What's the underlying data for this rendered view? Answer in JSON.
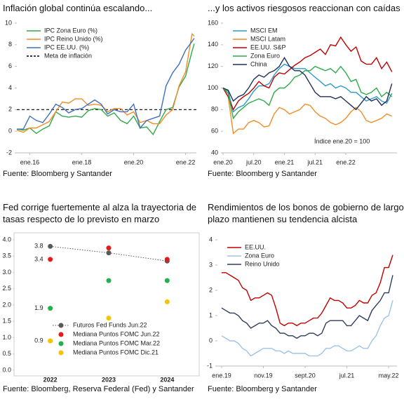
{
  "chart_data": [
    {
      "type": "line",
      "title": "Inflación global continúa escalando...",
      "source": "Fuente: Bloomberg y Santander",
      "x": [
        "2015-07",
        "2015-10",
        "2016-01",
        "2016-04",
        "2016-07",
        "2016-10",
        "2017-01",
        "2017-04",
        "2017-07",
        "2017-10",
        "2018-01",
        "2018-04",
        "2018-07",
        "2018-10",
        "2019-01",
        "2019-04",
        "2019-07",
        "2019-10",
        "2020-01",
        "2020-04",
        "2020-07",
        "2020-10",
        "2021-01",
        "2021-04",
        "2021-07",
        "2021-10",
        "2022-01",
        "2022-04",
        "2022-05"
      ],
      "series": [
        {
          "name": "IPC Zona Euro (%)",
          "color": "#2eaa4a",
          "values": [
            0.2,
            0.1,
            0.3,
            -0.2,
            0.2,
            0.5,
            1.8,
            1.4,
            1.3,
            1.4,
            1.3,
            1.9,
            2.1,
            2.0,
            1.4,
            1.7,
            1.0,
            0.7,
            1.4,
            0.3,
            0.4,
            -0.3,
            0.9,
            2.0,
            2.2,
            4.1,
            5.1,
            7.4,
            8.1
          ]
        },
        {
          "name": "IPC Reino Unido (%)",
          "color": "#f28c28",
          "values": [
            0.1,
            -0.1,
            0.3,
            0.3,
            0.6,
            0.9,
            1.8,
            2.7,
            2.6,
            3.0,
            3.0,
            2.4,
            2.5,
            2.4,
            1.8,
            2.1,
            2.1,
            1.5,
            1.8,
            0.8,
            1.0,
            0.7,
            0.7,
            1.5,
            2.0,
            4.2,
            5.5,
            9.0,
            8.8
          ]
        },
        {
          "name": "IPC EE.UU. (%)",
          "color": "#3f6fc0",
          "values": [
            0.2,
            0.2,
            1.4,
            1.0,
            0.8,
            1.6,
            2.5,
            2.2,
            1.7,
            2.0,
            2.1,
            2.5,
            2.9,
            2.5,
            1.6,
            2.0,
            1.8,
            1.8,
            2.5,
            0.3,
            1.0,
            1.2,
            1.4,
            4.2,
            5.4,
            6.2,
            7.5,
            8.3,
            8.6
          ]
        }
      ],
      "reference_line": {
        "name": "Meta de inflación",
        "value": 2,
        "color": "#000000"
      },
      "xlim": [
        "2015-07",
        "2022-06"
      ],
      "xticks": [
        {
          "value": "2016-01",
          "label": "ene.16"
        },
        {
          "value": "2018-01",
          "label": "ene.18"
        },
        {
          "value": "2020-01",
          "label": "ene.20"
        },
        {
          "value": "2022-01",
          "label": "ene.22"
        }
      ],
      "ylim": [
        -2,
        10
      ],
      "yticks": [
        -2,
        0,
        2,
        4,
        6,
        8,
        10
      ],
      "legend": "upper left"
    },
    {
      "type": "line",
      "title": "...y los activos riesgosos reaccionan con caídas",
      "source": "Fuente: Bloomberg y Santander",
      "annotation": "Índice ene.20 = 100",
      "x": [
        "2020-01",
        "2020-02",
        "2020-03",
        "2020-04",
        "2020-05",
        "2020-06",
        "2020-07",
        "2020-08",
        "2020-09",
        "2020-10",
        "2020-11",
        "2020-12",
        "2021-01",
        "2021-02",
        "2021-03",
        "2021-04",
        "2021-05",
        "2021-06",
        "2021-07",
        "2021-08",
        "2021-09",
        "2021-10",
        "2021-11",
        "2021-12",
        "2022-01",
        "2022-02",
        "2022-03",
        "2022-04",
        "2022-05",
        "2022-06",
        "2022-07",
        "2022-08",
        "2022-09",
        "2022-10"
      ],
      "series": [
        {
          "name": "MSCI EM",
          "color": "#2e9bc6",
          "values": [
            100,
            97,
            78,
            82,
            84,
            90,
            97,
            102,
            102,
            104,
            112,
            118,
            122,
            120,
            118,
            118,
            118,
            114,
            110,
            106,
            102,
            104,
            100,
            102,
            100,
            96,
            96,
            92,
            88,
            90,
            92,
            88,
            86,
            95
          ]
        },
        {
          "name": "MSCI Latam",
          "color": "#f28c28",
          "values": [
            100,
            92,
            58,
            62,
            62,
            68,
            70,
            68,
            64,
            65,
            76,
            82,
            80,
            76,
            78,
            80,
            85,
            84,
            78,
            74,
            72,
            68,
            66,
            68,
            72,
            78,
            82,
            78,
            70,
            68,
            70,
            72,
            76,
            74
          ]
        },
        {
          "name": "EE.UU. S&P",
          "color": "#c00000",
          "values": [
            100,
            92,
            80,
            88,
            92,
            95,
            100,
            106,
            102,
            100,
            110,
            114,
            113,
            117,
            121,
            124,
            128,
            130,
            133,
            136,
            131,
            140,
            139,
            147,
            140,
            134,
            138,
            125,
            122,
            122,
            128,
            118,
            124,
            115
          ]
        },
        {
          "name": "Zona Euro",
          "color": "#2eaa4a",
          "values": [
            100,
            95,
            72,
            78,
            82,
            86,
            88,
            90,
            88,
            84,
            96,
            100,
            100,
            104,
            110,
            112,
            116,
            116,
            120,
            118,
            116,
            118,
            114,
            120,
            114,
            106,
            108,
            96,
            94,
            96,
            100,
            92,
            96,
            92
          ]
        },
        {
          "name": "China",
          "color": "#1f2f5a",
          "values": [
            100,
            98,
            88,
            92,
            94,
            100,
            108,
            112,
            110,
            114,
            116,
            120,
            128,
            120,
            116,
            116,
            112,
            104,
            96,
            92,
            92,
            92,
            90,
            92,
            88,
            84,
            80,
            86,
            92,
            88,
            90,
            84,
            88,
            104
          ]
        }
      ],
      "xlim": [
        "2020-01",
        "2022-11"
      ],
      "xticks": [
        {
          "value": "2020-01",
          "label": "ene.20"
        },
        {
          "value": "2020-07",
          "label": "jul.20"
        },
        {
          "value": "2021-01",
          "label": "ene.21"
        },
        {
          "value": "2021-07",
          "label": "jul.21"
        },
        {
          "value": "2022-01",
          "label": "ene.22"
        }
      ],
      "ylim": [
        40,
        160
      ],
      "yticks": [
        40,
        60,
        80,
        100,
        120,
        140,
        160
      ],
      "legend": "upper left"
    },
    {
      "type": "dot",
      "title": "Fed corrige fuertemente al alza la trayectoria de tasas respecto de lo previsto en marzo",
      "source": "Fuente: Bloomberg, Reserva Federal (Fed) y Santander",
      "categories": [
        "2022",
        "2023",
        "2024"
      ],
      "series": [
        {
          "name": "Futuros Fed Funds Jun.22",
          "color": "#595959",
          "connect": true,
          "values": [
            3.8,
            3.6,
            3.35
          ]
        },
        {
          "name": "Mediana Puntos FOMC Jun.22",
          "color": "#e31b1b",
          "values": [
            3.4,
            3.75,
            3.4
          ]
        },
        {
          "name": "Mediana Puntos FOMC Mar.22",
          "color": "#22b14c",
          "values": [
            1.9,
            2.75,
            2.75
          ]
        },
        {
          "name": "Mediana Puntos FOMC Dic.21",
          "color": "#f5c400",
          "values": [
            0.9,
            1.6,
            2.1
          ]
        }
      ],
      "ylim": [
        0,
        4
      ],
      "yticks": [
        {
          "value": 0,
          "label": "0.0"
        },
        0.5,
        {
          "value": 1,
          "label": "1.0"
        },
        1.5,
        {
          "value": 2,
          "label": "2.0"
        },
        2.5,
        {
          "value": 3,
          "label": "3.0"
        },
        3.5,
        {
          "value": 4,
          "label": "4.0"
        }
      ],
      "legend": "lower center"
    },
    {
      "type": "line",
      "title": "Rendimientos de los bonos de gobierno de largo plazo mantienen su tendencia alcista",
      "source": "Fuente: Bloomberg y Santander",
      "x": [
        "2019-01",
        "2019-02",
        "2019-03",
        "2019-04",
        "2019-05",
        "2019-06",
        "2019-07",
        "2019-08",
        "2019-09",
        "2019-10",
        "2019-11",
        "2019-12",
        "2020-01",
        "2020-02",
        "2020-03",
        "2020-04",
        "2020-05",
        "2020-06",
        "2020-07",
        "2020-08",
        "2020-09",
        "2020-10",
        "2020-11",
        "2020-12",
        "2021-01",
        "2021-02",
        "2021-03",
        "2021-04",
        "2021-05",
        "2021-06",
        "2021-07",
        "2021-08",
        "2021-09",
        "2021-10",
        "2021-11",
        "2021-12",
        "2022-01",
        "2022-02",
        "2022-03",
        "2022-04",
        "2022-05",
        "2022-06"
      ],
      "series": [
        {
          "name": "EE.UU.",
          "color": "#c00000",
          "values": [
            2.7,
            2.7,
            2.6,
            2.5,
            2.4,
            2.1,
            2.0,
            1.6,
            1.7,
            1.7,
            1.8,
            1.9,
            1.8,
            1.3,
            0.7,
            0.6,
            0.7,
            0.7,
            0.6,
            0.7,
            0.7,
            0.8,
            0.9,
            0.9,
            1.1,
            1.4,
            1.7,
            1.6,
            1.6,
            1.5,
            1.3,
            1.3,
            1.4,
            1.6,
            1.5,
            1.5,
            1.8,
            1.9,
            2.3,
            2.9,
            2.9,
            3.4
          ]
        },
        {
          "name": "Zona Euro",
          "color": "#9ec3e6",
          "values": [
            0.2,
            0.1,
            0.0,
            0.0,
            -0.1,
            -0.3,
            -0.4,
            -0.6,
            -0.5,
            -0.4,
            -0.3,
            -0.3,
            -0.3,
            -0.4,
            -0.4,
            -0.5,
            -0.4,
            -0.5,
            -0.5,
            -0.5,
            -0.5,
            -0.6,
            -0.6,
            -0.6,
            -0.5,
            -0.3,
            -0.3,
            -0.2,
            -0.2,
            -0.3,
            -0.4,
            -0.4,
            -0.3,
            -0.2,
            -0.3,
            -0.3,
            0.0,
            0.2,
            0.6,
            0.9,
            1.0,
            1.6
          ]
        },
        {
          "name": "Reino Unido",
          "color": "#2f3b5c",
          "values": [
            1.3,
            1.2,
            1.1,
            1.1,
            1.0,
            0.8,
            0.7,
            0.5,
            0.6,
            0.7,
            0.7,
            0.8,
            0.6,
            0.5,
            0.3,
            0.3,
            0.2,
            0.2,
            0.1,
            0.2,
            0.2,
            0.3,
            0.3,
            0.2,
            0.3,
            0.7,
            0.8,
            0.8,
            0.8,
            0.8,
            0.6,
            0.6,
            0.8,
            1.0,
            0.9,
            0.8,
            1.2,
            1.4,
            1.6,
            1.9,
            1.9,
            2.6
          ]
        }
      ],
      "xlim": [
        "2018-12",
        "2022-07"
      ],
      "xticks": [
        {
          "value": "2019-01",
          "label": "ene.19"
        },
        {
          "value": "2019-11",
          "label": "nov.19"
        },
        {
          "value": "2020-09",
          "label": "sept.20"
        },
        {
          "value": "2021-07",
          "label": "jul.21"
        },
        {
          "value": "2022-05",
          "label": "may.22"
        }
      ],
      "ylim": [
        -1,
        4
      ],
      "yticks": [
        -1,
        0,
        1,
        2,
        3,
        4
      ],
      "legend": "upper left"
    }
  ]
}
